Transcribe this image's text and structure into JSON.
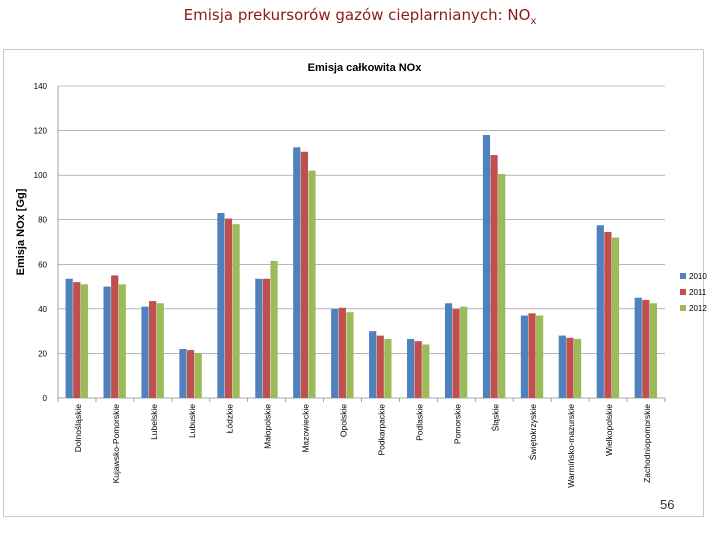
{
  "slide": {
    "title_main": "Emisja prekursorów gazów cieplarnianych:  NO",
    "title_sub": "x",
    "page_number": "56"
  },
  "colors": {
    "title": "#8b1a1a",
    "series": [
      "#4f81bd",
      "#c0504d",
      "#9bbb59"
    ]
  },
  "chart_data": {
    "type": "bar",
    "title": "Emisja całkowita NOx",
    "xlabel": "",
    "ylabel": "Emisja NOx [Gg]",
    "ylim": [
      0,
      140
    ],
    "yticks": [
      0,
      20,
      40,
      60,
      80,
      100,
      120,
      140
    ],
    "grid": true,
    "legend_position": "right",
    "categories": [
      "Dolnośląskie",
      "Kujawsko-Pomorskie",
      "Lubelskie",
      "Lubuskie",
      "Łódzkie",
      "Małopolskie",
      "Mazowieckie",
      "Opolskie",
      "Podkarpackie",
      "Podlaskie",
      "Pomorskie",
      "Śląskie",
      "Świętokrzyskie",
      "Warmińsko-mazurskie",
      "Wielkopolskie",
      "Zachodniopomorskie"
    ],
    "series": [
      {
        "name": "2010",
        "values": [
          53.5,
          50,
          41,
          22,
          83,
          53.5,
          112.5,
          40,
          30,
          26.5,
          42.5,
          118,
          37,
          28,
          77.5,
          45
        ]
      },
      {
        "name": "2011",
        "values": [
          52,
          55,
          43.5,
          21.5,
          80.5,
          53.5,
          110.5,
          40.5,
          28,
          25.5,
          40,
          109,
          38,
          27,
          74.5,
          44
        ]
      },
      {
        "name": "2012",
        "values": [
          51,
          51,
          42.5,
          20,
          78,
          61.5,
          102,
          38.5,
          26.5,
          24,
          41,
          100.5,
          37,
          26.5,
          72,
          42.5
        ]
      }
    ]
  }
}
